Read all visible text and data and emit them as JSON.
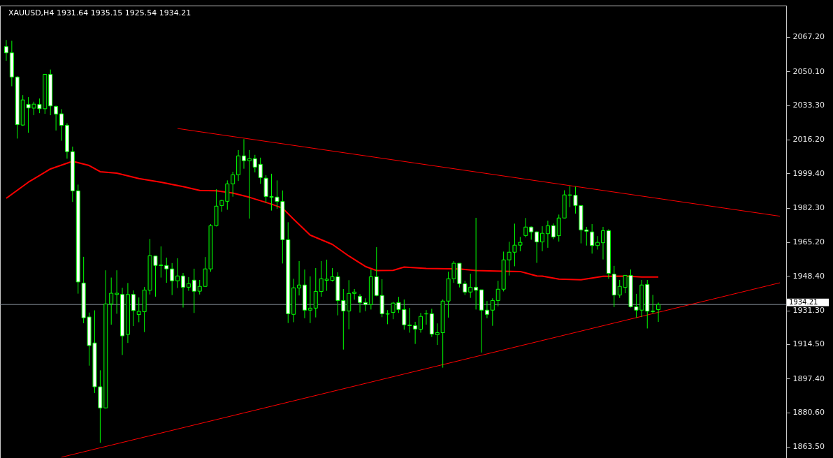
{
  "chart_data": {
    "type": "candlestick",
    "title": "XAUUSD,H4  1931.64 1935.15 1925.54 1934.21",
    "categories": [
      null,
      null,
      null,
      null,
      null,
      null,
      null,
      null,
      null,
      null,
      null,
      null,
      null,
      null,
      null,
      null,
      null,
      null,
      null,
      null,
      null,
      null,
      null,
      null,
      null,
      null,
      null,
      null,
      null,
      null,
      null,
      null,
      null,
      null,
      null,
      null,
      null,
      null,
      null,
      null,
      null,
      null,
      null,
      null,
      null,
      null,
      null,
      null,
      null,
      null,
      null,
      null,
      null,
      null,
      null,
      null,
      null,
      null,
      null,
      null,
      null,
      null,
      null,
      null,
      null,
      null,
      null,
      null,
      null,
      null,
      null,
      null,
      null,
      null,
      null,
      null,
      null,
      null,
      null,
      null,
      null,
      null,
      null,
      null,
      null,
      null,
      null,
      null,
      null,
      null,
      null,
      null,
      null,
      null,
      null,
      null,
      null,
      null,
      null,
      null,
      null,
      null,
      null,
      null,
      null,
      null,
      null,
      null,
      null,
      null,
      null,
      null,
      null,
      null,
      null,
      null,
      null,
      null,
      null,
      null,
      null,
      null,
      null,
      null,
      null,
      null,
      null,
      null,
      null,
      null,
      null,
      null,
      null,
      null,
      null,
      null,
      null,
      null,
      null,
      null,
      null
    ],
    "ohlc": [
      [
        2062.4,
        2065.7,
        2055.4,
        2059.3
      ],
      [
        2059.3,
        2065.3,
        2042.7,
        2047.3
      ],
      [
        2047.3,
        2047.7,
        2016.7,
        2023.6
      ],
      [
        2023.4,
        2038.3,
        2023.0,
        2035.9
      ],
      [
        2033.7,
        2037.3,
        2019.6,
        2031.9
      ],
      [
        2031.8,
        2035.0,
        2028.3,
        2033.8
      ],
      [
        2033.7,
        2036.6,
        2029.3,
        2031.5
      ],
      [
        2031.5,
        2048.7,
        2029.0,
        2048.6
      ],
      [
        2048.6,
        2051.0,
        2028.3,
        2032.9
      ],
      [
        2032.7,
        2033.0,
        2020.7,
        2028.9
      ],
      [
        2029.0,
        2031.3,
        2015.6,
        2023.3
      ],
      [
        2023.3,
        2024.3,
        2006.7,
        2010.2
      ],
      [
        2010.2,
        2012.7,
        1985.2,
        1990.7
      ],
      [
        1990.7,
        1993.8,
        1939.6,
        1945.4
      ],
      [
        1944.9,
        1957.9,
        1924.9,
        1927.6
      ],
      [
        1928.0,
        1930.2,
        1903.8,
        1913.8
      ],
      [
        1915.1,
        1931.3,
        1890.2,
        1893.3
      ],
      [
        1893.3,
        1901.5,
        1865.5,
        1882.8
      ],
      [
        1882.8,
        1951.2,
        1882.5,
        1934.5
      ],
      [
        1934.5,
        1947.6,
        1924.2,
        1939.8
      ],
      [
        1939.2,
        1951.2,
        1929.6,
        1939.8
      ],
      [
        1939.2,
        1942.5,
        1909.1,
        1918.6
      ],
      [
        1919.3,
        1944.9,
        1915.1,
        1939.2
      ],
      [
        1939.2,
        1941.2,
        1923.5,
        1931.2
      ],
      [
        1929.2,
        1937.7,
        1925.4,
        1930.8
      ],
      [
        1930.6,
        1942.9,
        1920.5,
        1941.4
      ],
      [
        1941.3,
        1966.8,
        1939.2,
        1958.5
      ],
      [
        1958.3,
        1958.3,
        1938.1,
        1953.6
      ],
      [
        1953.5,
        1963.1,
        1947.6,
        1953.9
      ],
      [
        1953.6,
        1957.5,
        1945.0,
        1951.9
      ],
      [
        1951.9,
        1954.8,
        1938.9,
        1946.0
      ],
      [
        1946.0,
        1957.2,
        1942.4,
        1948.4
      ],
      [
        1948.4,
        1949.9,
        1932.7,
        1942.8
      ],
      [
        1942.8,
        1947.8,
        1941.0,
        1944.6
      ],
      [
        1946.3,
        1952.0,
        1930.0,
        1940.8
      ],
      [
        1940.8,
        1946.4,
        1939.2,
        1943.2
      ],
      [
        1943.2,
        1957.8,
        1943.0,
        1951.9
      ],
      [
        1951.9,
        1974.2,
        1950.5,
        1973.4
      ],
      [
        1973.4,
        1991.5,
        1973.0,
        1983.1
      ],
      [
        1983.4,
        1986.3,
        1980.3,
        1985.9
      ],
      [
        1985.5,
        1995.9,
        1981.3,
        1994.2
      ],
      [
        1994.2,
        2000.2,
        1987.8,
        1998.7
      ],
      [
        1998.7,
        2011.0,
        1995.6,
        2008.1
      ],
      [
        2008.1,
        2016.4,
        2001.7,
        2005.7
      ],
      [
        2005.7,
        2011.0,
        1976.9,
        2006.7
      ],
      [
        2006.7,
        2008.6,
        1999.9,
        2002.5
      ],
      [
        2003.9,
        2007.2,
        1994.2,
        1997.3
      ],
      [
        1997.0,
        1998.5,
        1984.7,
        1987.9
      ],
      [
        1987.9,
        1999.2,
        1980.9,
        1987.5
      ],
      [
        1987.6,
        1995.9,
        1981.8,
        1985.4
      ],
      [
        1985.4,
        1990.9,
        1954.6,
        1966.4
      ],
      [
        1966.4,
        1975.1,
        1925.0,
        1929.6
      ],
      [
        1929.3,
        1947.0,
        1925.4,
        1942.5
      ],
      [
        1942.4,
        1955.8,
        1938.7,
        1943.9
      ],
      [
        1943.9,
        1951.6,
        1927.4,
        1931.4
      ],
      [
        1931.4,
        1948.2,
        1925.0,
        1932.4
      ],
      [
        1932.4,
        1952.3,
        1927.8,
        1940.7
      ],
      [
        1940.7,
        1955.8,
        1938.1,
        1947.0
      ],
      [
        1946.2,
        1956.5,
        1941.0,
        1946.8
      ],
      [
        1946.2,
        1952.3,
        1945.6,
        1948.0
      ],
      [
        1948.0,
        1950.2,
        1928.8,
        1936.2
      ],
      [
        1936.2,
        1941.9,
        1911.8,
        1931.0
      ],
      [
        1931.0,
        1946.3,
        1921.9,
        1939.7
      ],
      [
        1939.7,
        1941.9,
        1936.6,
        1940.4
      ],
      [
        1938.3,
        1939.4,
        1930.2,
        1935.2
      ],
      [
        1935.2,
        1937.3,
        1930.9,
        1934.2
      ],
      [
        1934.2,
        1951.6,
        1931.7,
        1948.0
      ],
      [
        1948.0,
        1962.7,
        1938.3,
        1938.7
      ],
      [
        1938.7,
        1946.8,
        1927.9,
        1929.6
      ],
      [
        1929.6,
        1931.4,
        1924.4,
        1929.4
      ],
      [
        1930.3,
        1935.5,
        1926.9,
        1934.9
      ],
      [
        1935.2,
        1938.0,
        1930.0,
        1931.7
      ],
      [
        1931.7,
        1936.7,
        1921.7,
        1924.1
      ],
      [
        1924.0,
        1932.5,
        1920.2,
        1923.7
      ],
      [
        1923.7,
        1925.6,
        1914.6,
        1922.0
      ],
      [
        1921.9,
        1930.0,
        1920.2,
        1928.3
      ],
      [
        1929.5,
        1931.4,
        1924.2,
        1929.6
      ],
      [
        1929.6,
        1932.1,
        1918.1,
        1919.5
      ],
      [
        1919.2,
        1924.8,
        1914.1,
        1920.2
      ],
      [
        1920.2,
        1936.7,
        1902.8,
        1935.9
      ],
      [
        1935.9,
        1950.5,
        1927.7,
        1947.0
      ],
      [
        1947.0,
        1955.8,
        1945.0,
        1954.7
      ],
      [
        1954.7,
        1954.7,
        1942.7,
        1944.5
      ],
      [
        1944.5,
        1946.0,
        1938.9,
        1940.4
      ],
      [
        1940.4,
        1949.5,
        1937.5,
        1942.8
      ],
      [
        1942.8,
        1977.3,
        1931.7,
        1941.3
      ],
      [
        1941.5,
        1941.5,
        1910.3,
        1931.4
      ],
      [
        1931.4,
        1935.9,
        1927.4,
        1929.3
      ],
      [
        1931.4,
        1937.3,
        1923.6,
        1936.2
      ],
      [
        1936.2,
        1946.0,
        1933.3,
        1941.8
      ],
      [
        1941.8,
        1960.5,
        1940.7,
        1956.4
      ],
      [
        1956.4,
        1965.4,
        1948.6,
        1960.2
      ],
      [
        1960.2,
        1974.4,
        1953.2,
        1963.7
      ],
      [
        1963.7,
        1967.8,
        1960.7,
        1965.1
      ],
      [
        1968.5,
        1977.2,
        1967.6,
        1972.7
      ],
      [
        1972.7,
        1973.0,
        1966.4,
        1970.3
      ],
      [
        1970.3,
        1970.5,
        1954.9,
        1965.3
      ],
      [
        1965.3,
        1973.1,
        1960.7,
        1969.6
      ],
      [
        1969.4,
        1975.9,
        1962.4,
        1973.4
      ],
      [
        1973.4,
        1974.5,
        1966.7,
        1967.8
      ],
      [
        1968.4,
        1978.9,
        1965.5,
        1977.2
      ],
      [
        1977.2,
        1991.0,
        1977.0,
        1988.7
      ],
      [
        1988.5,
        1993.1,
        1982.6,
        1988.7
      ],
      [
        1988.5,
        1992.8,
        1979.4,
        1983.4
      ],
      [
        1983.4,
        1983.6,
        1964.6,
        1971.3
      ],
      [
        1971.3,
        1972.8,
        1963.5,
        1970.6
      ],
      [
        1970.3,
        1974.2,
        1959.5,
        1963.5
      ],
      [
        1963.5,
        1968.2,
        1961.5,
        1965.1
      ],
      [
        1964.9,
        1972.8,
        1956.6,
        1970.9
      ],
      [
        1970.9,
        1971.6,
        1947.0,
        1949.7
      ],
      [
        1949.3,
        1953.4,
        1932.9,
        1938.9
      ],
      [
        1938.9,
        1946.4,
        1937.5,
        1943.2
      ],
      [
        1942.7,
        1948.7,
        1939.8,
        1948.7
      ],
      [
        1948.7,
        1951.6,
        1932.7,
        1933.1
      ],
      [
        1933.1,
        1939.5,
        1927.7,
        1931.4
      ],
      [
        1931.4,
        1946.4,
        1928.0,
        1943.9
      ],
      [
        1944.2,
        1946.4,
        1922.3,
        1930.9
      ],
      [
        1931.0,
        1939.0,
        1929.7,
        1930.7
      ],
      [
        1931.64,
        1935.15,
        1925.54,
        1934.21
      ],
      null,
      null,
      null,
      null,
      null,
      null,
      null,
      null,
      null,
      null,
      null,
      null,
      null,
      null,
      null,
      null,
      null,
      null,
      null,
      null,
      null,
      null
    ],
    "color": "#00ff00",
    "series": [
      {
        "type": "line",
        "color": "#ff0000",
        "values": [
          1987.0,
          null,
          null,
          null,
          1995.0,
          null,
          null,
          null,
          2001.6,
          null,
          null,
          null,
          2005.4,
          null,
          null,
          2003.3,
          null,
          2000.2,
          null,
          null,
          1999.5,
          null,
          null,
          null,
          1996.8,
          null,
          null,
          null,
          1995.0,
          null,
          null,
          null,
          1992.8,
          null,
          null,
          1990.9,
          null,
          null,
          1990.7,
          null,
          null,
          1989.6,
          null,
          null,
          1987.5,
          null,
          null,
          null,
          1984.1,
          null,
          1982.1,
          null,
          1976.6,
          null,
          null,
          1968.7,
          null,
          null,
          null,
          1964.1,
          null,
          null,
          1958.3,
          null,
          null,
          1953.1,
          null,
          1951.1,
          null,
          null,
          1951.2,
          null,
          1952.8,
          null,
          null,
          null,
          1952.1,
          null,
          null,
          null,
          null,
          null,
          1951.9,
          null,
          null,
          1951.1,
          null,
          null,
          null,
          null,
          1950.7,
          null,
          null,
          1950.6,
          null,
          null,
          1948.4,
          1948.3,
          null,
          null,
          1946.8,
          null,
          null,
          null,
          1946.5,
          null,
          null,
          null,
          1948.2,
          null,
          null,
          null,
          1948.3,
          null,
          null,
          1947.9,
          null,
          null,
          1947.9,
          null,
          null,
          null,
          null,
          null,
          null,
          null,
          null,
          null,
          null,
          null,
          null,
          null,
          null,
          null,
          null,
          null,
          null,
          null,
          null,
          null,
          null
        ]
      },
      {
        "type": "line",
        "color": "#ff0000",
        "values": [
          null,
          null,
          null,
          null,
          null,
          null,
          null,
          null,
          null,
          null,
          null,
          null,
          null,
          null,
          null,
          null,
          null,
          null,
          null,
          null,
          null,
          null,
          null,
          null,
          null,
          null,
          null,
          null,
          null,
          null,
          null,
          2021.7,
          null,
          null,
          null,
          null,
          null,
          null,
          null,
          null,
          null,
          null,
          null,
          null,
          null,
          null,
          null,
          null,
          null,
          null,
          null,
          null,
          null,
          null,
          null,
          null,
          null,
          null,
          null,
          null,
          null,
          null,
          null,
          null,
          null,
          null,
          null,
          null,
          null,
          null,
          null,
          null,
          null,
          null,
          null,
          null,
          null,
          null,
          null,
          null,
          null,
          null,
          null,
          null,
          null,
          null,
          null,
          null,
          null,
          null,
          null,
          null,
          null,
          null,
          null,
          null,
          null,
          null,
          null,
          null,
          null,
          null,
          null,
          null,
          null,
          null,
          null,
          null,
          null,
          null,
          null,
          null,
          null,
          null,
          null,
          null,
          null,
          null,
          null,
          null,
          null,
          null,
          null,
          null,
          null,
          null,
          null,
          null,
          null,
          null,
          null,
          null,
          null,
          null,
          null,
          null,
          null,
          null,
          null,
          null,
          1978.1
        ]
      },
      {
        "type": "line",
        "color": "#ff0000",
        "values": [
          null,
          null,
          null,
          null,
          null,
          null,
          null,
          null,
          null,
          null,
          1858.3,
          null,
          null,
          null,
          null,
          null,
          null,
          null,
          null,
          null,
          null,
          null,
          null,
          null,
          null,
          null,
          null,
          null,
          null,
          null,
          null,
          null,
          null,
          null,
          null,
          null,
          null,
          null,
          null,
          null,
          null,
          null,
          null,
          null,
          null,
          null,
          null,
          null,
          null,
          null,
          null,
          null,
          null,
          null,
          null,
          null,
          null,
          null,
          null,
          null,
          null,
          null,
          null,
          null,
          null,
          null,
          null,
          null,
          null,
          null,
          null,
          null,
          null,
          null,
          null,
          null,
          null,
          null,
          null,
          null,
          null,
          null,
          null,
          null,
          null,
          null,
          null,
          null,
          null,
          null,
          null,
          null,
          null,
          null,
          null,
          null,
          null,
          null,
          null,
          null,
          null,
          null,
          null,
          null,
          null,
          null,
          null,
          null,
          null,
          null,
          null,
          null,
          null,
          null,
          null,
          null,
          null,
          null,
          null,
          null,
          null,
          null,
          null,
          null,
          null,
          null,
          null,
          null,
          null,
          null,
          null,
          null,
          null,
          null,
          null,
          null,
          null,
          null,
          null,
          null,
          1945.0
        ]
      }
    ],
    "ylim": [
      1857.9,
      2082.8
    ],
    "yticks": [
      {
        "value": 2067.2,
        "label": "2067.20"
      },
      {
        "value": 2050.1,
        "label": "2050.10"
      },
      {
        "value": 2033.3,
        "label": "2033.30"
      },
      {
        "value": 2016.2,
        "label": "2016.20"
      },
      {
        "value": 1999.4,
        "label": "1999.40"
      },
      {
        "value": 1982.3,
        "label": "1982.30"
      },
      {
        "value": 1965.2,
        "label": "1965.20"
      },
      {
        "value": 1948.4,
        "label": "1948.40"
      },
      {
        "value": 1931.3,
        "label": "1931.30"
      },
      {
        "value": 1914.5,
        "label": "1914.50"
      },
      {
        "value": 1897.4,
        "label": "1897.40"
      },
      {
        "value": 1880.6,
        "label": "1880.60"
      },
      {
        "value": 1863.5,
        "label": "1863.50"
      }
    ],
    "ref_lines": [
      {
        "axis": "y",
        "value": 1934.21,
        "label": "1934.21",
        "color": "#8c96a0"
      }
    ],
    "tick_labels": "y",
    "grid": false
  }
}
